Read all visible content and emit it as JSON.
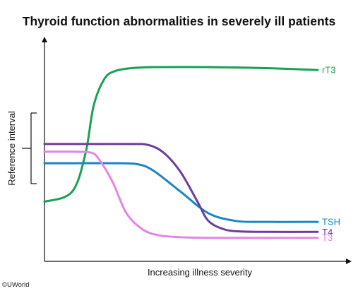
{
  "chart_data": {
    "type": "line",
    "title": "Thyroid function abnormalities in severely ill patients",
    "xlabel": "Increasing illness severity",
    "ylabel": "Reference interval",
    "x_ticks": false,
    "y_ticks": false,
    "grid": false,
    "reference_interval_bracket": true,
    "series": [
      {
        "name": "rT3",
        "color": "#1aa055",
        "x": [
          0,
          10,
          15,
          18,
          22,
          26,
          32,
          40,
          60,
          80,
          100
        ],
        "y": [
          20,
          25,
          45,
          70,
          84,
          88,
          89.5,
          90,
          90,
          89.5,
          88.5
        ]
      },
      {
        "name": "TSH",
        "color": "#1a86c2",
        "x": [
          0,
          10,
          25,
          34,
          40,
          50,
          60,
          70,
          80,
          100
        ],
        "y": [
          40,
          40,
          40,
          39.5,
          36,
          25,
          14,
          10,
          9.5,
          9.5
        ]
      },
      {
        "name": "T4",
        "color": "#6a3d9f",
        "x": [
          0,
          10,
          30,
          38,
          44,
          50,
          56,
          60,
          66,
          72,
          80,
          100
        ],
        "y": [
          50,
          50,
          50,
          49.5,
          45,
          35,
          20,
          10,
          5.5,
          4.5,
          4.3,
          4.3
        ]
      },
      {
        "name": "T3",
        "color": "#e385e8",
        "x": [
          0,
          10,
          17,
          20,
          25,
          30,
          36,
          42,
          50,
          60,
          70,
          100
        ],
        "y": [
          46,
          46,
          45.5,
          42,
          30,
          14,
          5.5,
          2.5,
          1.5,
          1.2,
          1.2,
          1.2
        ]
      }
    ]
  },
  "copyright": "©UWorld"
}
